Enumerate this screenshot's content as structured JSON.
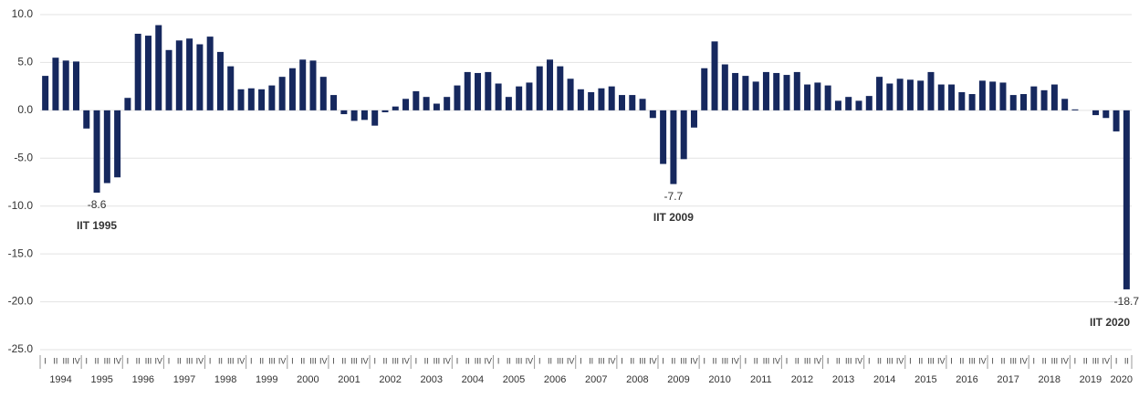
{
  "chart_data": {
    "type": "bar",
    "color": "#16285e",
    "grid": true,
    "ylim": [
      -25,
      10
    ],
    "yticks": [
      {
        "value": 10,
        "label": "10.0"
      },
      {
        "value": 5,
        "label": "5.0"
      },
      {
        "value": 0,
        "label": "0.0"
      },
      {
        "value": -5,
        "label": "-5.0"
      },
      {
        "value": -10,
        "label": "-10.0"
      },
      {
        "value": -15,
        "label": "-15.0"
      },
      {
        "value": -20,
        "label": "-20.0"
      },
      {
        "value": -25,
        "label": "-25.0"
      }
    ],
    "categories": [
      "I",
      "II",
      "III",
      "IV",
      "I",
      "II",
      "III",
      "IV",
      "I",
      "II",
      "III",
      "IV",
      "I",
      "II",
      "III",
      "IV",
      "I",
      "II",
      "III",
      "IV",
      "I",
      "II",
      "III",
      "IV",
      "I",
      "II",
      "III",
      "IV",
      "I",
      "II",
      "III",
      "IV",
      "I",
      "II",
      "III",
      "IV",
      "I",
      "II",
      "III",
      "IV",
      "I",
      "II",
      "III",
      "IV",
      "I",
      "II",
      "III",
      "IV",
      "I",
      "II",
      "III",
      "IV",
      "I",
      "II",
      "III",
      "IV",
      "I",
      "II",
      "III",
      "IV",
      "I",
      "II",
      "III",
      "IV",
      "I",
      "II",
      "III",
      "IV",
      "I",
      "II",
      "III",
      "IV",
      "I",
      "II",
      "III",
      "IV",
      "I",
      "II",
      "III",
      "IV",
      "I",
      "II",
      "III",
      "IV",
      "I",
      "II",
      "III",
      "IV",
      "I",
      "II",
      "III",
      "IV",
      "I",
      "II",
      "III",
      "IV",
      "I",
      "II",
      "III",
      "IV",
      "I",
      "II",
      "III",
      "IV",
      "I",
      "II"
    ],
    "years": [
      "1994",
      "1995",
      "1996",
      "1997",
      "1998",
      "1999",
      "2000",
      "2001",
      "2002",
      "2003",
      "2004",
      "2005",
      "2006",
      "2007",
      "2008",
      "2009",
      "2010",
      "2011",
      "2012",
      "2013",
      "2014",
      "2015",
      "2016",
      "2017",
      "2018",
      "2019",
      "2020"
    ],
    "values": [
      3.6,
      5.5,
      5.2,
      5.1,
      -1.9,
      -8.6,
      -7.6,
      -7.0,
      1.3,
      8.0,
      7.8,
      8.9,
      6.3,
      7.3,
      7.5,
      6.9,
      7.7,
      6.1,
      4.6,
      2.2,
      2.3,
      2.2,
      2.6,
      3.5,
      4.4,
      5.3,
      5.2,
      3.5,
      1.6,
      -0.4,
      -1.1,
      -1.0,
      -1.6,
      -0.2,
      0.4,
      1.2,
      2.0,
      1.4,
      0.7,
      1.4,
      2.6,
      4.0,
      3.9,
      4.0,
      2.8,
      1.4,
      2.5,
      2.9,
      4.6,
      5.3,
      4.6,
      3.3,
      2.2,
      1.9,
      2.3,
      2.5,
      1.6,
      1.6,
      1.2,
      -0.8,
      -5.6,
      -7.7,
      -5.1,
      -1.8,
      4.4,
      7.2,
      4.8,
      3.9,
      3.6,
      3.0,
      4.0,
      3.9,
      3.7,
      4.0,
      2.7,
      2.9,
      2.6,
      1.0,
      1.4,
      1.0,
      1.5,
      3.5,
      2.8,
      3.3,
      3.2,
      3.1,
      4.0,
      2.7,
      2.7,
      1.9,
      1.7,
      3.1,
      3.0,
      2.9,
      1.6,
      1.7,
      2.5,
      2.1,
      2.7,
      1.2,
      0.1,
      0.0,
      -0.5,
      -0.8,
      -2.2,
      -18.7
    ],
    "annotations": [
      {
        "index": 5,
        "text": "IIT 1995"
      },
      {
        "index": 61,
        "text": "IIT 2009"
      },
      {
        "index": 105,
        "text": "IIT 2020"
      }
    ]
  }
}
